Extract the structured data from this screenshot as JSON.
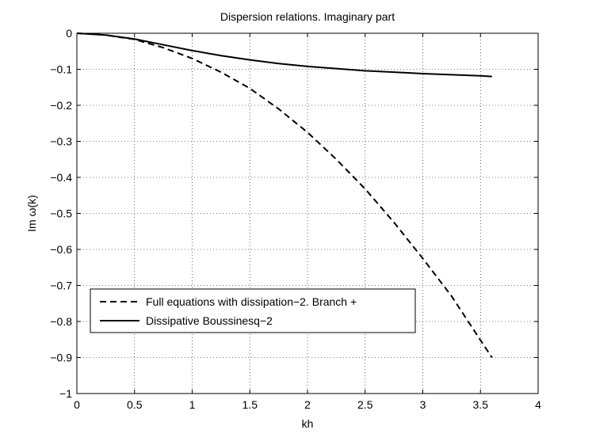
{
  "chart_data": {
    "type": "line",
    "title": "Dispersion relations. Imaginary part",
    "xlabel": "kh",
    "ylabel": "Im ω(k)",
    "xlim": [
      0,
      4
    ],
    "ylim": [
      -1,
      0
    ],
    "xticks": [
      0,
      0.5,
      1,
      1.5,
      2,
      2.5,
      3,
      3.5,
      4
    ],
    "xtick_labels": [
      "0",
      "0.5",
      "1",
      "1.5",
      "2",
      "2.5",
      "3",
      "3.5",
      "4"
    ],
    "yticks": [
      0,
      -0.1,
      -0.2,
      -0.3,
      -0.4,
      -0.5,
      -0.6,
      -0.7,
      -0.8,
      -0.9,
      -1
    ],
    "ytick_labels": [
      "0",
      "−0.1",
      "−0.2",
      "−0.3",
      "−0.4",
      "−0.5",
      "−0.6",
      "−0.7",
      "−0.8",
      "−0.9",
      "−1"
    ],
    "grid": true,
    "legend_position": "bottom-left",
    "series": [
      {
        "name": "Full equations with dissipation−2. Branch +",
        "style": "dashed",
        "color": "#000000",
        "x": [
          0,
          0.25,
          0.5,
          0.75,
          1,
          1.25,
          1.5,
          1.75,
          2,
          2.25,
          2.5,
          2.75,
          3,
          3.25,
          3.5,
          3.6
        ],
        "y": [
          0,
          -0.005,
          -0.017,
          -0.04,
          -0.07,
          -0.108,
          -0.153,
          -0.21,
          -0.275,
          -0.35,
          -0.432,
          -0.525,
          -0.625,
          -0.73,
          -0.852,
          -0.9
        ]
      },
      {
        "name": "Dissipative Boussinesq−2",
        "style": "solid",
        "color": "#000000",
        "x": [
          0,
          0.25,
          0.5,
          0.75,
          1,
          1.25,
          1.5,
          1.75,
          2,
          2.25,
          2.5,
          2.75,
          3,
          3.25,
          3.5,
          3.6
        ],
        "y": [
          0,
          -0.005,
          -0.016,
          -0.032,
          -0.048,
          -0.062,
          -0.074,
          -0.084,
          -0.092,
          -0.098,
          -0.104,
          -0.108,
          -0.112,
          -0.115,
          -0.118,
          -0.12
        ]
      }
    ]
  }
}
